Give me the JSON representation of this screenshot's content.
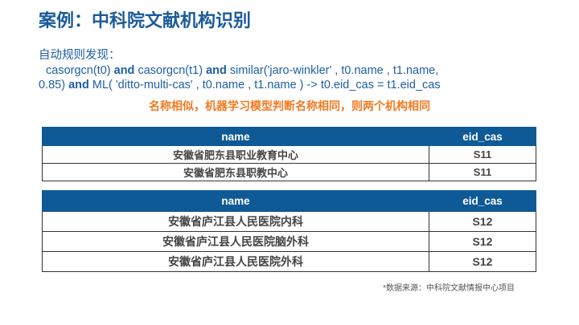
{
  "title": "案例：中科院文献机构识别",
  "rule": {
    "label": "自动规则发现：",
    "parts": [
      "casorgcn(t0)",
      "and",
      "casorgcn(t1)",
      "and",
      "similar('jaro-winkler'  , t0.name , t1.name,",
      "0.85)",
      "and",
      "ML( 'ditto-multi-cas' , t0.name , t1.name )  ->  t0.eid_cas = t1.eid_cas"
    ]
  },
  "note": "名称相似，机器学习模型判断名称相同，则两个机构相同",
  "table1": {
    "headers": [
      "name",
      "eid_cas"
    ],
    "rows": [
      [
        "安徽省肥东县职业教育中心",
        "S11"
      ],
      [
        "安徽省肥东县职教中心",
        "S11"
      ]
    ]
  },
  "table2": {
    "headers": [
      "name",
      "eid_cas"
    ],
    "rows": [
      [
        "安徽省庐江县人民医院内科",
        "S12"
      ],
      [
        "安徽省庐江县人民医院脑外科",
        "S12"
      ],
      [
        "安徽省庐江县人民医院外科",
        "S12"
      ]
    ]
  },
  "source": "*数据来源：中科院文献情报中心项目",
  "colors": {
    "title": "#1b5b9b",
    "note": "#f07a22",
    "header": "#0e5a96"
  }
}
